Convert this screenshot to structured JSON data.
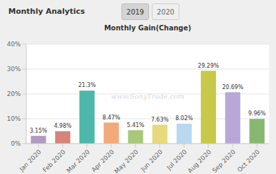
{
  "chart_data": {
    "type": "bar",
    "title": "Monthly Gain(Change)",
    "subtitle": "Monthly Analytics",
    "annotations": [
      "2019",
      "2020",
      "www.SonyTrade.com"
    ],
    "categories": [
      "Jan 2020",
      "Feb 2020",
      "Mar 2020",
      "Apr 2020",
      "May 2020",
      "Jun 2020",
      "Jul 2020",
      "Aug 2020",
      "Sep 2020",
      "Oct 2020"
    ],
    "values": [
      3.15,
      4.98,
      21.3,
      8.47,
      5.41,
      7.63,
      8.02,
      29.29,
      20.69,
      9.96
    ],
    "value_labels": [
      "3.15%",
      "4.98%",
      "21.3%",
      "8.47%",
      "5.41%",
      "7.63%",
      "8.02%",
      "29.29%",
      "20.69%",
      "9.96%"
    ],
    "colors": [
      "#b09cc0",
      "#d9827a",
      "#4db8aa",
      "#f4a97a",
      "#a8c97a",
      "#e8d97a",
      "#b8d8f0",
      "#c8c84a",
      "#b8a8d8",
      "#88b870"
    ],
    "ylim": [
      0,
      40
    ],
    "yticks": [
      {
        "value": 0,
        "label": "0%"
      },
      {
        "value": 10,
        "label": "10%"
      },
      {
        "value": 20,
        "label": "20%"
      },
      {
        "value": 30,
        "label": "30%"
      },
      {
        "value": 40,
        "label": "40%"
      }
    ],
    "grid": true,
    "data_labels": true
  }
}
